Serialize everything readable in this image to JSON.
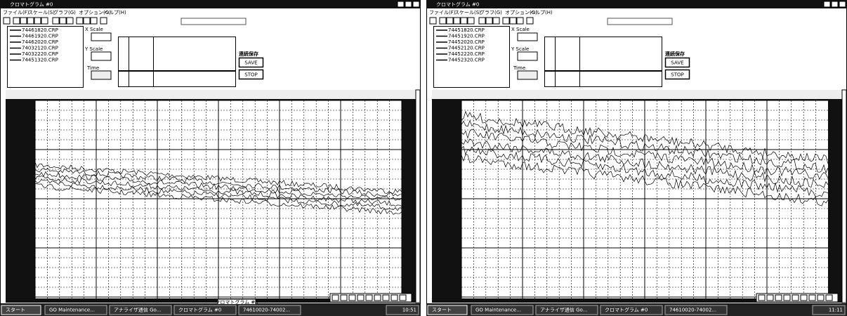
{
  "windows": [
    {
      "title": "クロマトグラム #0",
      "menu": [
        "ファイル(F)",
        "スケール(S)",
        "グラフ(G)",
        "オプション(O)",
        "ヘルプ(H)"
      ],
      "files": [
        "74461820.CRP",
        "74461920.CRP",
        "74462020.CRP",
        "74032120.CRP",
        "74032220.CRP",
        "74451320.CRP"
      ],
      "x_scale": "X Scale",
      "y_scale": "Y Scale",
      "time": "Time",
      "continuous_save": "連続保存",
      "save": "SAVE",
      "stop": "STOP",
      "minimized_label": "クロマトグラム #0"
    },
    {
      "title": "クロマトグラム #0",
      "menu": [
        "ファイル(F)",
        "スケール(S)",
        "グラフ(G)",
        "オプション(O)",
        "ヘルプ(H)"
      ],
      "files": [
        "74451820.CRP",
        "74451920.CRP",
        "74452020.CRP",
        "74452120.CRP",
        "74452220.CRP",
        "74452320.CRP"
      ],
      "x_scale": "X Scale",
      "y_scale": "Y Scale",
      "time": "Time",
      "continuous_save": "連続保存",
      "save": "SAVE",
      "stop": "STOP"
    }
  ],
  "taskbars": [
    {
      "start": "スタート",
      "items": [
        "GO Maintenance...",
        "アナライザ通信  Go...",
        "クロマトグラム #0",
        "74610020-74002..."
      ],
      "clock": "10:51"
    },
    {
      "start": "スタート",
      "items": [
        "GO Maintenance...",
        "アナライザ通信 Go...",
        "クロマトグラム #0",
        "74610020-74002..."
      ],
      "clock": "11:11"
    }
  ]
}
